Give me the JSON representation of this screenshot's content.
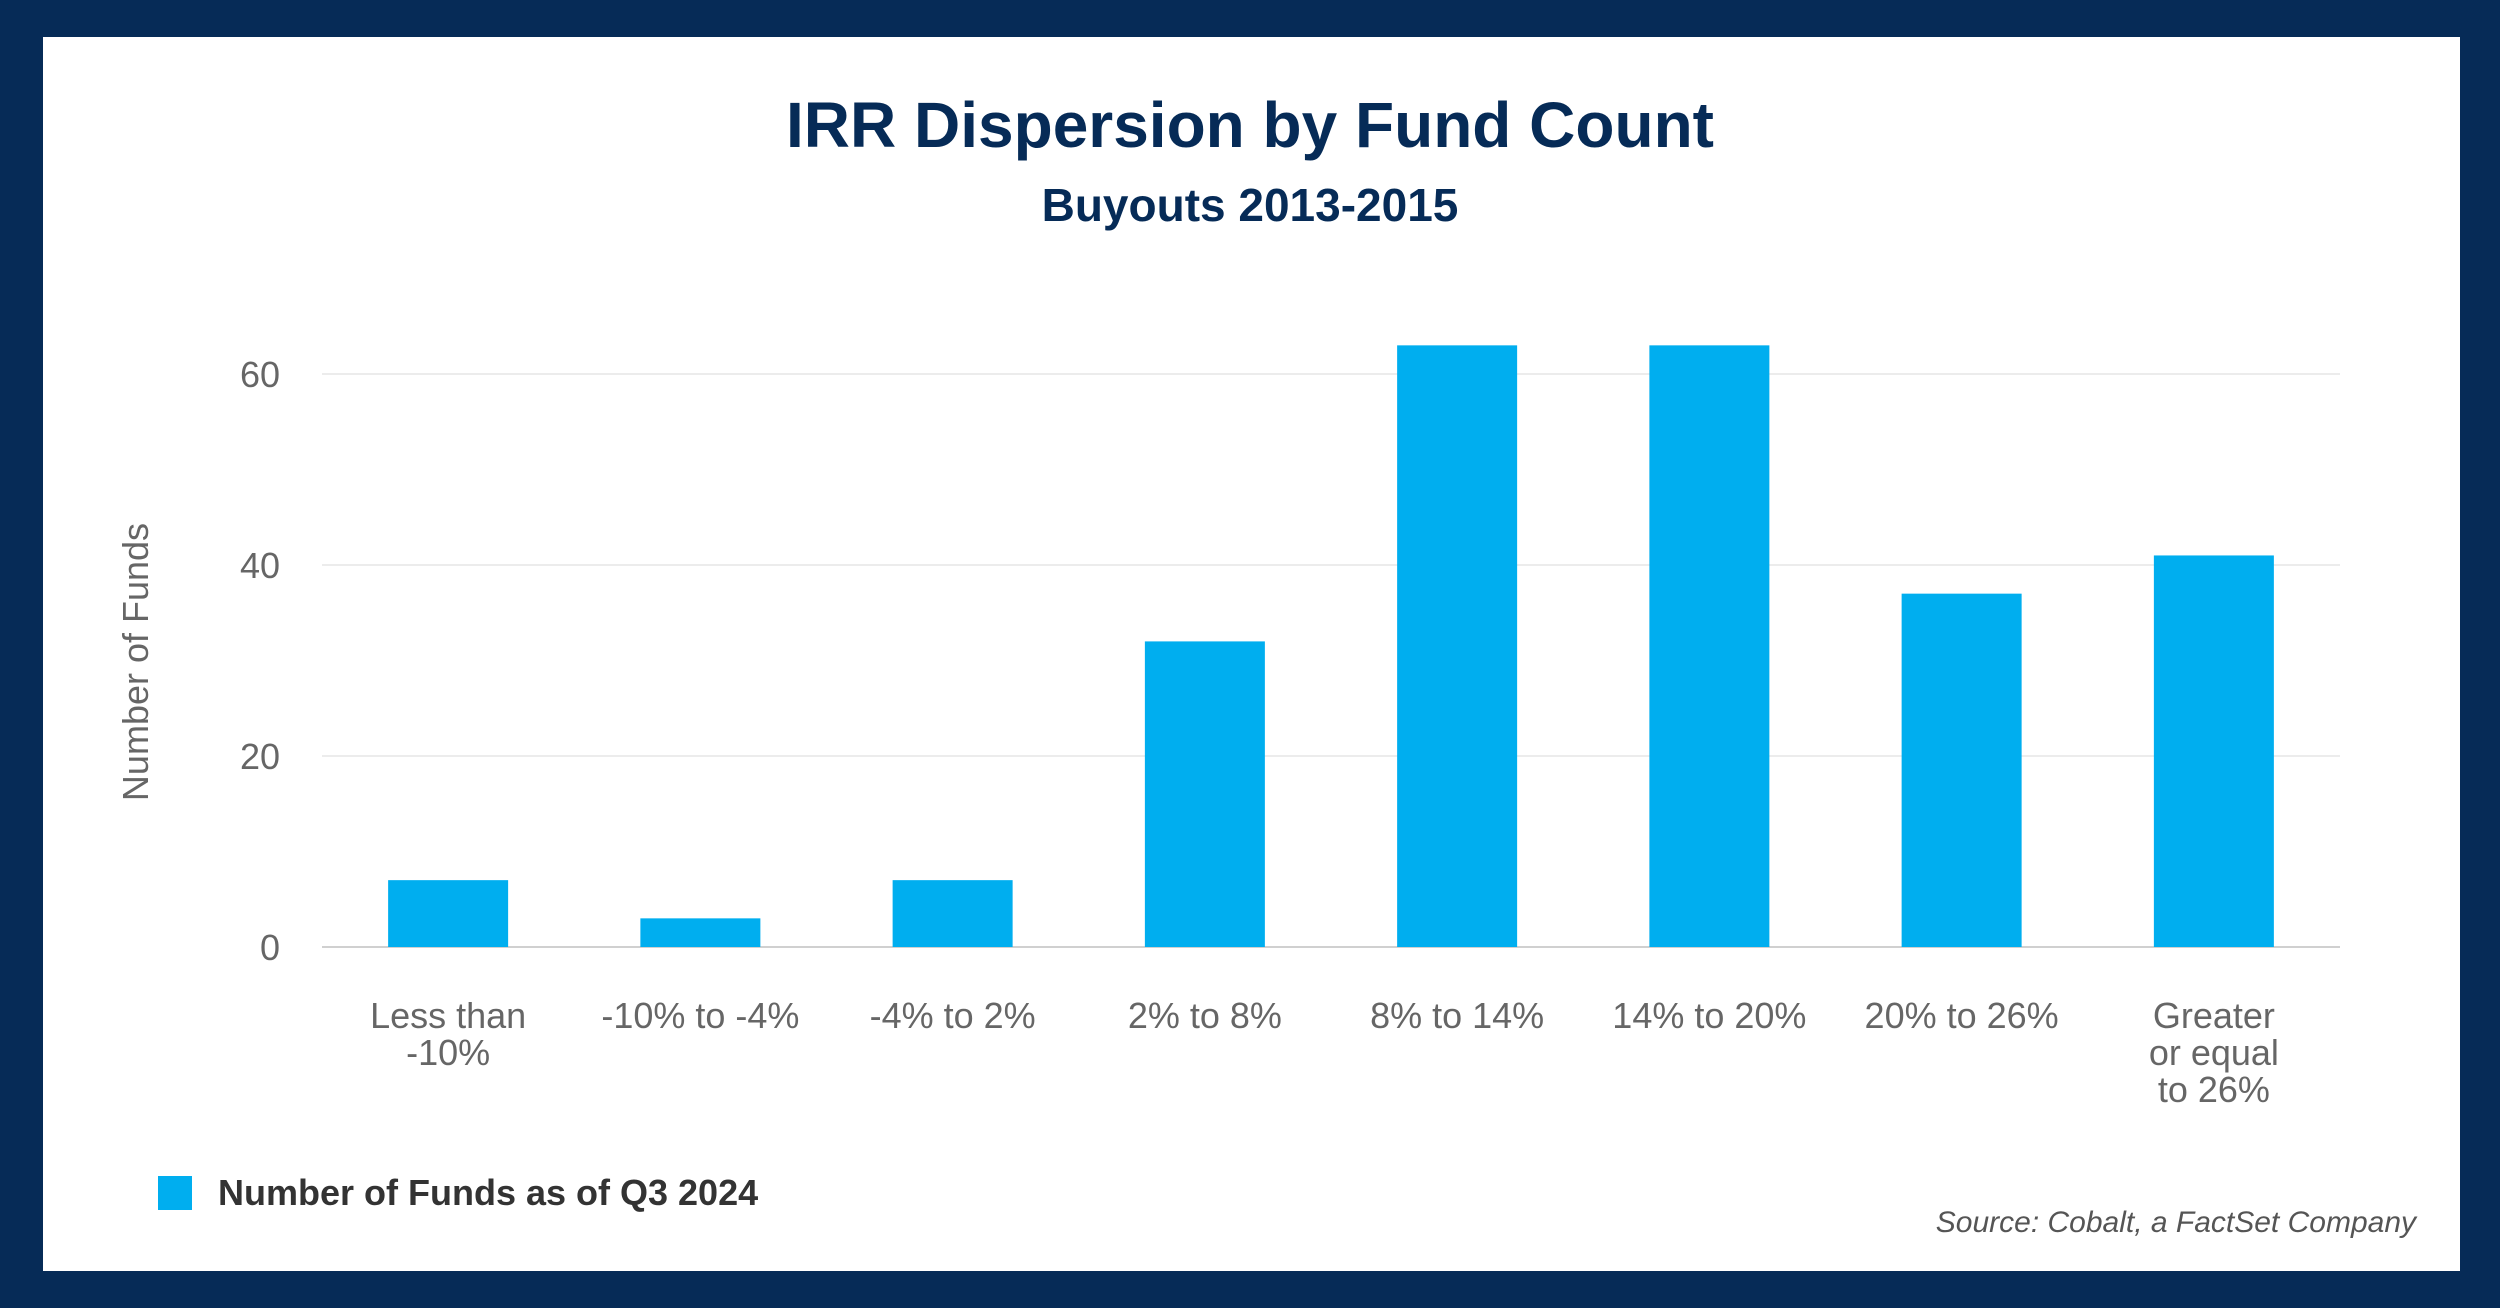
{
  "chart_data": {
    "type": "bar",
    "title": "IRR Dispersion by Fund Count",
    "subtitle": "Buyouts 2013-2015",
    "ylabel": "Number of Funds",
    "xlabel": "",
    "categories": [
      [
        "Less than",
        "-10%"
      ],
      [
        "-10% to -4%"
      ],
      [
        "-4% to 2%"
      ],
      [
        "2% to 8%"
      ],
      [
        "8% to 14%"
      ],
      [
        "14% to 20%"
      ],
      [
        "20% to 26%"
      ],
      [
        "Greater",
        "or equal",
        "to 26%"
      ]
    ],
    "series": [
      {
        "name": "Number of Funds as of Q3 2024",
        "values": [
          7,
          3,
          7,
          32,
          63,
          63,
          37,
          41
        ],
        "color": "#00aeef"
      }
    ],
    "ylim": [
      0,
      66
    ],
    "yticks": [
      0,
      20,
      40,
      60
    ],
    "grid": true,
    "legend_position": "bottom-left"
  },
  "source": "Source: Cobalt, a FactSet Company",
  "colors": {
    "background": "#062b57",
    "bar": "#00aeef",
    "title": "#062b57"
  }
}
